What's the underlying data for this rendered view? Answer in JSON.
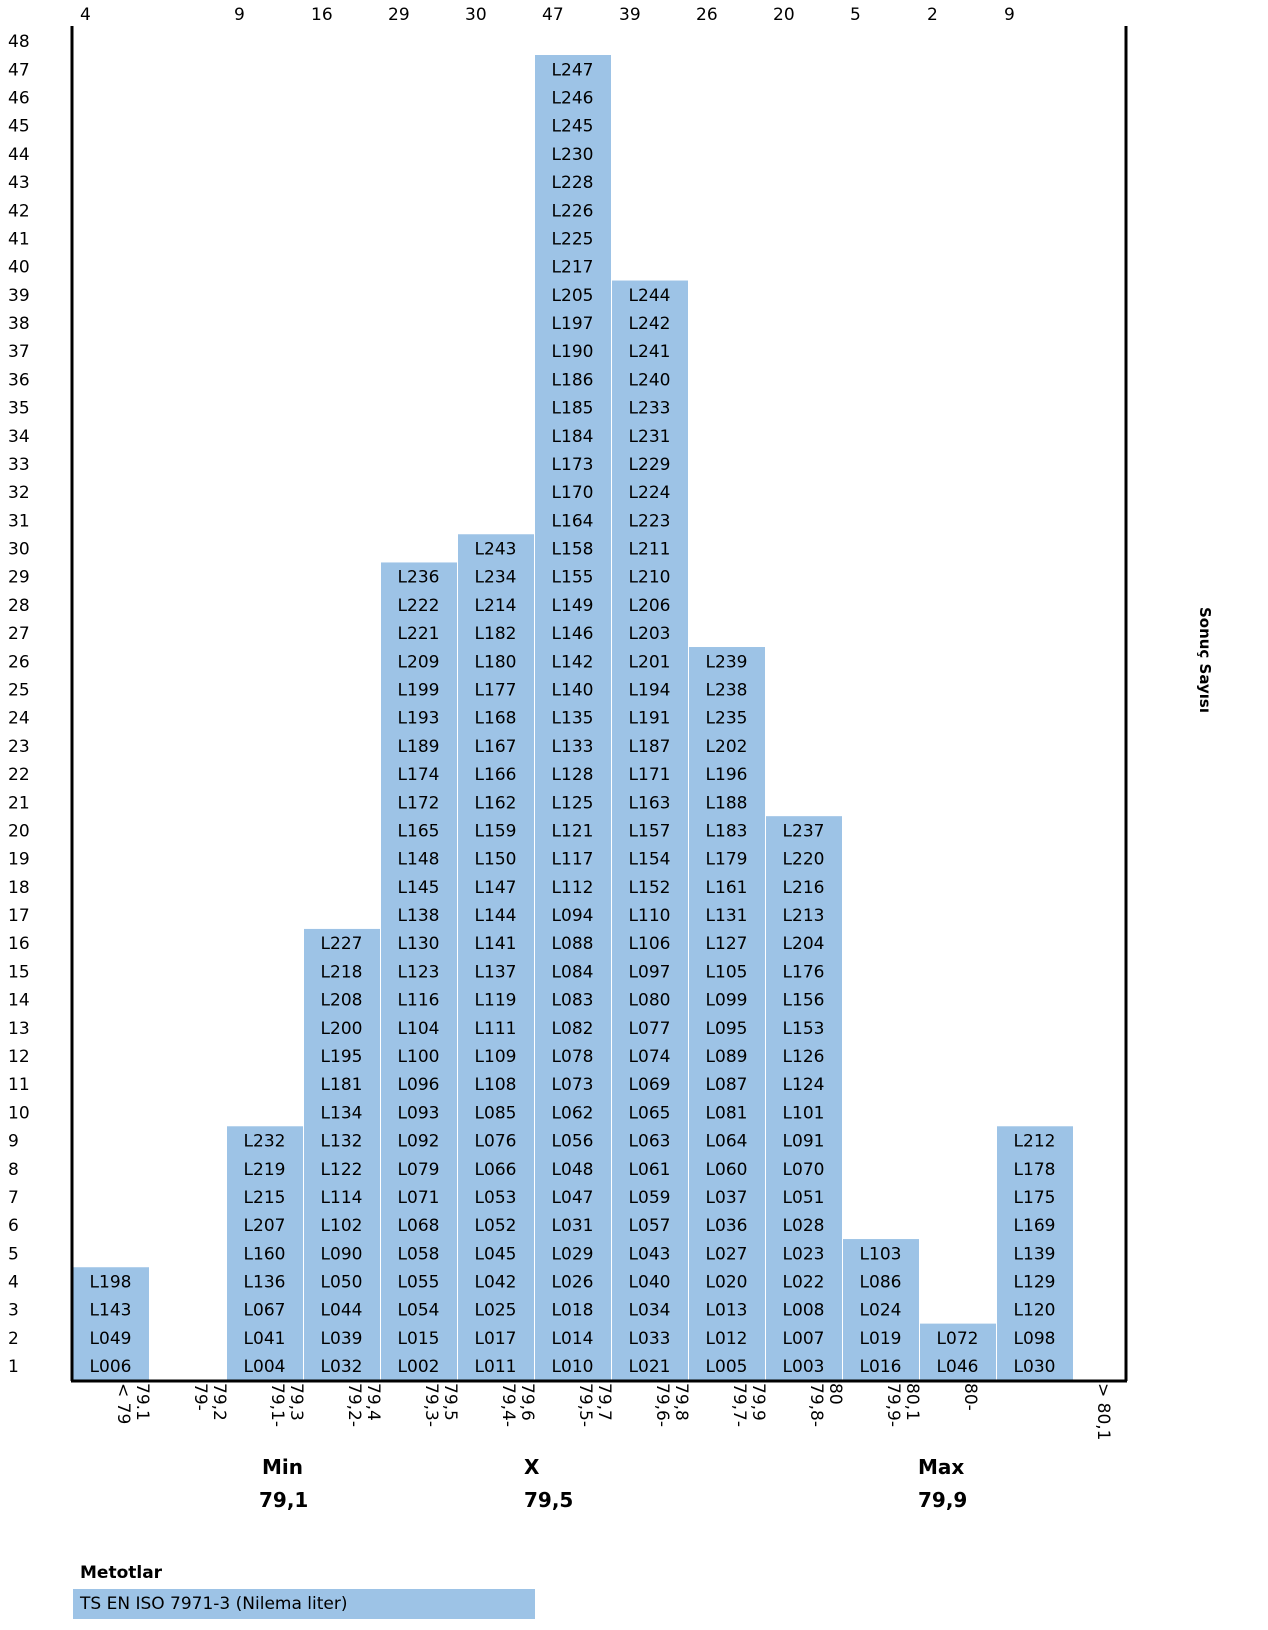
{
  "chart_data": {
    "type": "bar",
    "ylabel": "Sonuç Sayısı",
    "ylim": [
      0,
      48
    ],
    "yticks": [
      1,
      2,
      3,
      4,
      5,
      6,
      7,
      8,
      9,
      10,
      11,
      12,
      13,
      14,
      15,
      16,
      17,
      18,
      19,
      20,
      21,
      22,
      23,
      24,
      25,
      26,
      27,
      28,
      29,
      30,
      31,
      32,
      33,
      34,
      35,
      36,
      37,
      38,
      39,
      40,
      41,
      42,
      43,
      44,
      45,
      46,
      47,
      48
    ],
    "categories": [
      [
        "< 79",
        "79.1"
      ],
      [
        "79-",
        "79,2"
      ],
      [
        "79,1-",
        "79,3"
      ],
      [
        "79,2-",
        "79,4"
      ],
      [
        "79,3-",
        "79,5"
      ],
      [
        "79,4-",
        "79,6"
      ],
      [
        "79,5-",
        "79,7"
      ],
      [
        "79,6-",
        "79,8"
      ],
      [
        "79,7-",
        "79,9"
      ],
      [
        "79,8-",
        "80"
      ],
      [
        "79,9-",
        "80,1"
      ],
      [
        "80-"
      ],
      [
        "> 80,1"
      ]
    ],
    "counts": [
      4,
      0,
      9,
      16,
      29,
      30,
      47,
      39,
      26,
      20,
      5,
      2,
      9
    ],
    "top_labels": [
      "4",
      "9",
      "16",
      "29",
      "30",
      "47",
      "39",
      "26",
      "20",
      "5",
      "2",
      "9"
    ],
    "bins": [
      [
        "L006",
        "L049",
        "L143",
        "L198"
      ],
      [],
      [
        "L004",
        "L041",
        "L067",
        "L136",
        "L160",
        "L207",
        "L215",
        "L219",
        "L232"
      ],
      [
        "L032",
        "L039",
        "L044",
        "L050",
        "L090",
        "L102",
        "L114",
        "L122",
        "L132",
        "L134",
        "L181",
        "L195",
        "L200",
        "L208",
        "L218",
        "L227"
      ],
      [
        "L002",
        "L015",
        "L054",
        "L055",
        "L058",
        "L068",
        "L071",
        "L079",
        "L092",
        "L093",
        "L096",
        "L100",
        "L104",
        "L116",
        "L123",
        "L130",
        "L138",
        "L145",
        "L148",
        "L165",
        "L172",
        "L174",
        "L189",
        "L193",
        "L199",
        "L209",
        "L221",
        "L222",
        "L236"
      ],
      [
        "L011",
        "L017",
        "L025",
        "L042",
        "L045",
        "L052",
        "L053",
        "L066",
        "L076",
        "L085",
        "L108",
        "L109",
        "L111",
        "L119",
        "L137",
        "L141",
        "L144",
        "L147",
        "L150",
        "L159",
        "L162",
        "L166",
        "L167",
        "L168",
        "L177",
        "L180",
        "L182",
        "L214",
        "L234",
        "L243"
      ],
      [
        "L010",
        "L014",
        "L018",
        "L026",
        "L029",
        "L031",
        "L047",
        "L048",
        "L056",
        "L062",
        "L073",
        "L078",
        "L082",
        "L083",
        "L084",
        "L088",
        "L094",
        "L112",
        "L117",
        "L121",
        "L125",
        "L128",
        "L133",
        "L135",
        "L140",
        "L142",
        "L146",
        "L149",
        "L155",
        "L158",
        "L164",
        "L170",
        "L173",
        "L184",
        "L185",
        "L186",
        "L190",
        "L197",
        "L205",
        "L217",
        "L225",
        "L226",
        "L228",
        "L230",
        "L245",
        "L246",
        "L247"
      ],
      [
        "L021",
        "L033",
        "L034",
        "L040",
        "L043",
        "L057",
        "L059",
        "L061",
        "L063",
        "L065",
        "L069",
        "L074",
        "L077",
        "L080",
        "L097",
        "L106",
        "L110",
        "L152",
        "L154",
        "L157",
        "L163",
        "L171",
        "L187",
        "L191",
        "L194",
        "L201",
        "L203",
        "L206",
        "L210",
        "L211",
        "L223",
        "L224",
        "L229",
        "L231",
        "L233",
        "L240",
        "L241",
        "L242",
        "L244"
      ],
      [
        "L005",
        "L012",
        "L013",
        "L020",
        "L027",
        "L036",
        "L037",
        "L060",
        "L064",
        "L081",
        "L087",
        "L089",
        "L095",
        "L099",
        "L105",
        "L127",
        "L131",
        "L161",
        "L179",
        "L183",
        "L188",
        "L196",
        "L202",
        "L235",
        "L238",
        "L239"
      ],
      [
        "L003",
        "L007",
        "L008",
        "L022",
        "L023",
        "L028",
        "L051",
        "L070",
        "L091",
        "L101",
        "L124",
        "L126",
        "L153",
        "L156",
        "L176",
        "L204",
        "L213",
        "L216",
        "L220",
        "L237"
      ],
      [
        "L016",
        "L019",
        "L024",
        "L086",
        "L103"
      ],
      [
        "L046",
        "L072"
      ],
      [
        "L030",
        "L098",
        "L120",
        "L129",
        "L139",
        "L169",
        "L175",
        "L178",
        "L212"
      ]
    ],
    "bar_color": "#9dc3e6",
    "grid": false
  },
  "stats": {
    "min_label": "Min",
    "min_value": "79,1",
    "mean_label": "X",
    "mean_value": "79,5",
    "max_label": "Max",
    "max_value": "79,9"
  },
  "methods": {
    "title": "Metotlar",
    "items": [
      "TS EN ISO 7971-3 (Nilema liter)"
    ]
  }
}
